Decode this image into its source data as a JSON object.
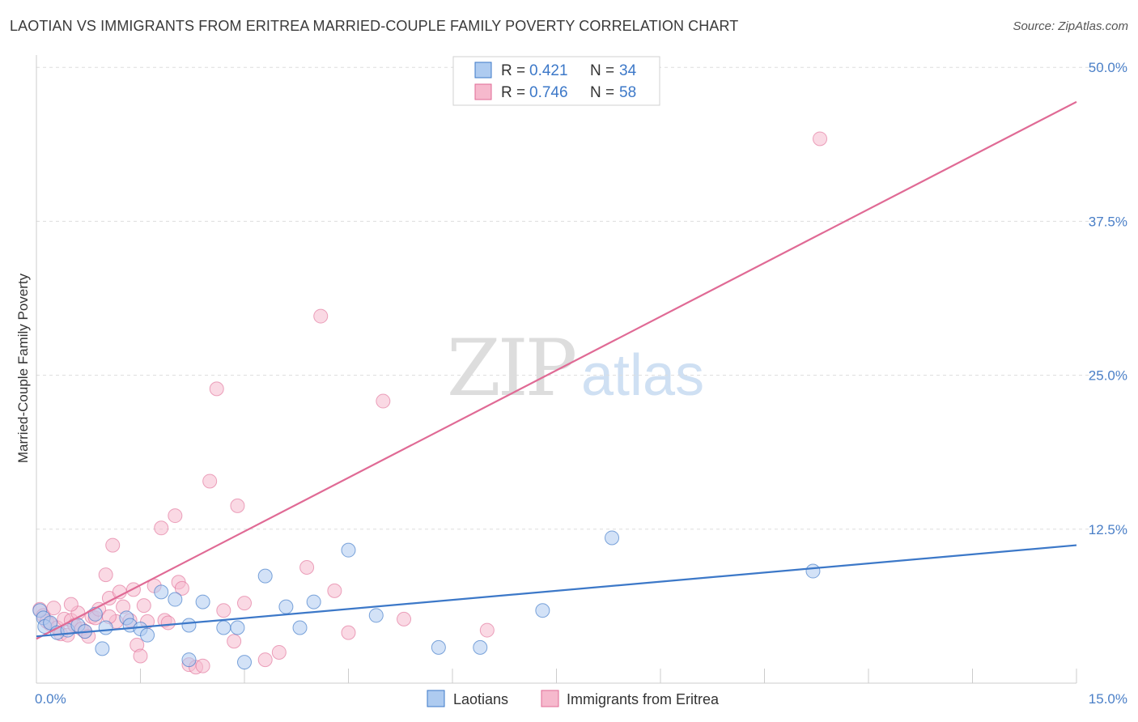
{
  "title": "LAOTIAN VS IMMIGRANTS FROM ERITREA MARRIED-COUPLE FAMILY POVERTY CORRELATION CHART",
  "source": "Source: ZipAtlas.com",
  "colors": {
    "laotians": "#3c78c8",
    "laotians_fill": "#aecbf0",
    "eritrea": "#e06a95",
    "eritrea_fill": "#f6b9cd",
    "grid": "#dddddd",
    "tick_text": "#4a7fc7"
  },
  "watermark": {
    "zip": "ZIP",
    "atlas": "atlas"
  },
  "legend": {
    "rows": [
      {
        "r_label": "R =",
        "r_value": "0.421",
        "n_label": "N =",
        "n_value": "34"
      },
      {
        "r_label": "R =",
        "r_value": "0.746",
        "n_label": "N =",
        "n_value": "58"
      }
    ]
  },
  "bottom_legend": [
    "Laotians",
    "Immigrants from Eritrea"
  ],
  "chart_data": {
    "type": "scatter",
    "title": "LAOTIAN VS IMMIGRANTS FROM ERITREA MARRIED-COUPLE FAMILY POVERTY CORRELATION CHART",
    "xlabel": "",
    "ylabel": "Married-Couple Family Poverty",
    "xlim": [
      0,
      15
    ],
    "ylim": [
      0,
      51
    ],
    "x_tick_labels": [
      "0.0%",
      "15.0%"
    ],
    "y_ticks": [
      12.5,
      25.0,
      37.5,
      50.0
    ],
    "y_tick_labels": [
      "12.5%",
      "25.0%",
      "37.5%",
      "50.0%"
    ],
    "grid": true,
    "legend_position": "top-center",
    "series": [
      {
        "name": "Laotians",
        "R": 0.421,
        "N": 34,
        "trend": {
          "x": [
            0.0,
            15.0
          ],
          "y": [
            3.8,
            11.2
          ]
        },
        "points": [
          [
            0.05,
            5.9
          ],
          [
            0.1,
            5.3
          ],
          [
            0.12,
            4.6
          ],
          [
            0.2,
            4.9
          ],
          [
            0.3,
            4.1
          ],
          [
            0.45,
            4.3
          ],
          [
            0.6,
            4.7
          ],
          [
            0.7,
            4.2
          ],
          [
            0.85,
            5.6
          ],
          [
            0.95,
            2.8
          ],
          [
            1.0,
            4.5
          ],
          [
            1.3,
            5.3
          ],
          [
            1.35,
            4.7
          ],
          [
            1.5,
            4.4
          ],
          [
            1.6,
            3.9
          ],
          [
            1.8,
            7.4
          ],
          [
            2.0,
            6.8
          ],
          [
            2.2,
            4.7
          ],
          [
            2.4,
            6.6
          ],
          [
            2.7,
            4.5
          ],
          [
            2.9,
            4.5
          ],
          [
            3.0,
            1.7
          ],
          [
            3.3,
            8.7
          ],
          [
            3.6,
            6.2
          ],
          [
            3.8,
            4.5
          ],
          [
            4.0,
            6.6
          ],
          [
            4.5,
            10.8
          ],
          [
            4.9,
            5.5
          ],
          [
            5.8,
            2.9
          ],
          [
            6.4,
            2.9
          ],
          [
            7.3,
            5.9
          ],
          [
            8.3,
            11.8
          ],
          [
            11.2,
            9.1
          ],
          [
            2.2,
            1.9
          ]
        ]
      },
      {
        "name": "Immigrants from Eritrea",
        "R": 0.746,
        "N": 58,
        "trend": {
          "x": [
            0.0,
            15.0
          ],
          "y": [
            3.6,
            47.2
          ]
        },
        "points": [
          [
            0.05,
            6.0
          ],
          [
            0.1,
            5.5
          ],
          [
            0.15,
            5.0
          ],
          [
            0.2,
            4.8
          ],
          [
            0.25,
            6.1
          ],
          [
            0.3,
            4.5
          ],
          [
            0.35,
            4.0
          ],
          [
            0.4,
            5.2
          ],
          [
            0.45,
            3.9
          ],
          [
            0.5,
            5.1
          ],
          [
            0.55,
            4.7
          ],
          [
            0.6,
            5.7
          ],
          [
            0.65,
            4.4
          ],
          [
            0.7,
            4.2
          ],
          [
            0.75,
            3.8
          ],
          [
            0.8,
            5.4
          ],
          [
            0.85,
            5.3
          ],
          [
            0.9,
            6.0
          ],
          [
            1.0,
            8.8
          ],
          [
            1.05,
            6.9
          ],
          [
            1.1,
            11.2
          ],
          [
            1.15,
            5.0
          ],
          [
            1.2,
            7.4
          ],
          [
            1.25,
            6.2
          ],
          [
            1.35,
            5.1
          ],
          [
            1.4,
            7.6
          ],
          [
            1.45,
            3.1
          ],
          [
            1.5,
            2.2
          ],
          [
            1.55,
            6.3
          ],
          [
            1.6,
            5.0
          ],
          [
            1.7,
            7.9
          ],
          [
            1.8,
            12.6
          ],
          [
            1.85,
            5.1
          ],
          [
            1.9,
            4.9
          ],
          [
            2.0,
            13.6
          ],
          [
            2.05,
            8.2
          ],
          [
            2.1,
            7.7
          ],
          [
            2.2,
            1.5
          ],
          [
            2.3,
            1.3
          ],
          [
            2.4,
            1.4
          ],
          [
            2.5,
            16.4
          ],
          [
            2.6,
            23.9
          ],
          [
            2.7,
            5.9
          ],
          [
            2.85,
            3.4
          ],
          [
            2.9,
            14.4
          ],
          [
            3.0,
            6.5
          ],
          [
            3.3,
            1.9
          ],
          [
            3.5,
            2.5
          ],
          [
            3.9,
            9.4
          ],
          [
            4.1,
            29.8
          ],
          [
            4.3,
            7.5
          ],
          [
            4.5,
            4.1
          ],
          [
            5.0,
            22.9
          ],
          [
            5.3,
            5.2
          ],
          [
            6.5,
            4.3
          ],
          [
            11.3,
            44.2
          ],
          [
            1.05,
            5.4
          ],
          [
            0.5,
            6.4
          ]
        ]
      }
    ]
  }
}
